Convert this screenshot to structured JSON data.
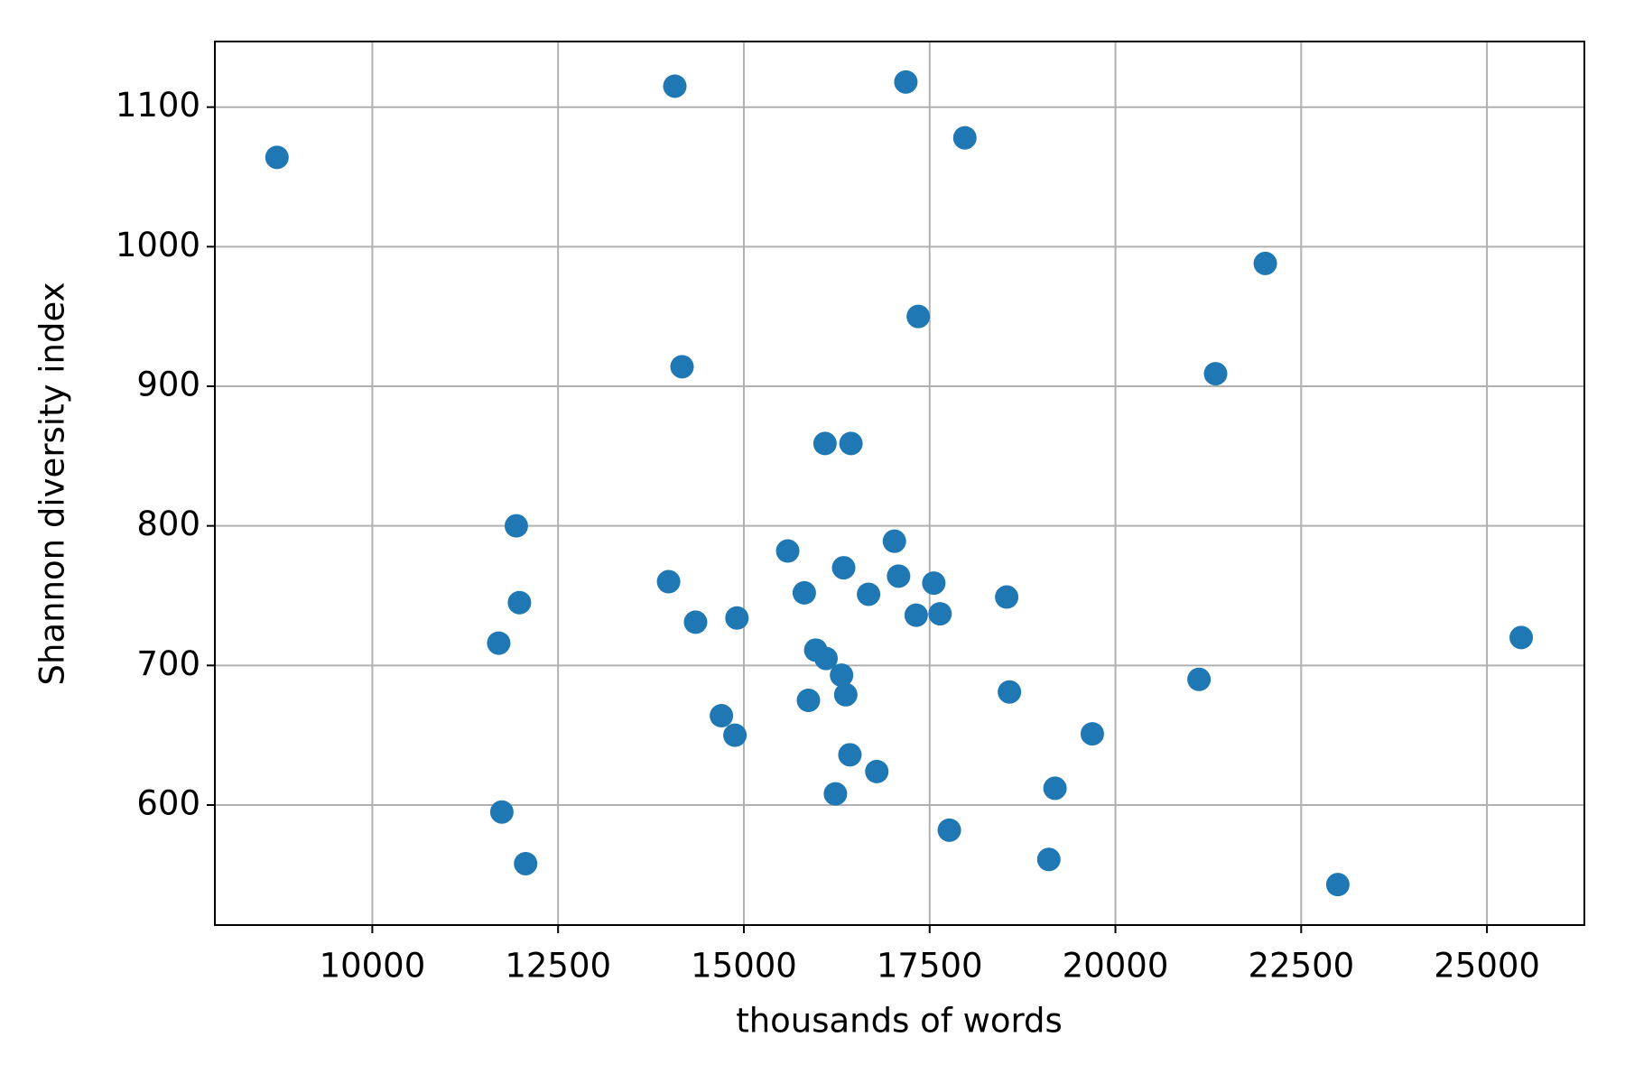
{
  "chart_data": {
    "type": "scatter",
    "xlabel": "thousands of words",
    "ylabel": "Shannon diversity index",
    "x": [
      8717,
      14071,
      17180,
      17974,
      22017,
      17347,
      21348,
      14168,
      16092,
      16441,
      11938,
      17026,
      15590,
      13987,
      16343,
      17082,
      17556,
      15813,
      16678,
      18537,
      11980,
      14350,
      14907,
      17319,
      17640,
      25461,
      11701,
      15967,
      16106,
      16315,
      21125,
      16371,
      18574,
      15869,
      14698,
      14880,
      19689,
      16427,
      16789,
      19187,
      16232,
      11743,
      17765,
      12063,
      19104,
      22993
    ],
    "values": [
      1064,
      1115,
      1118,
      1078,
      988,
      950,
      909,
      914,
      859,
      859,
      800,
      789,
      782,
      760,
      770,
      764,
      759,
      752,
      751,
      749,
      745,
      731,
      734,
      736,
      737,
      720,
      716,
      711,
      705,
      693,
      690,
      679,
      681,
      675,
      664,
      650,
      651,
      636,
      624,
      612,
      608,
      595,
      582,
      558,
      561,
      543
    ],
    "color": "#1f77b4",
    "xlim": [
      7881,
      26311
    ],
    "ylim": [
      514,
      1147
    ],
    "xticks": [
      10000,
      12500,
      15000,
      17500,
      20000,
      22500,
      25000
    ],
    "yticks": [
      600,
      700,
      800,
      900,
      1000,
      1100
    ],
    "grid": true
  }
}
